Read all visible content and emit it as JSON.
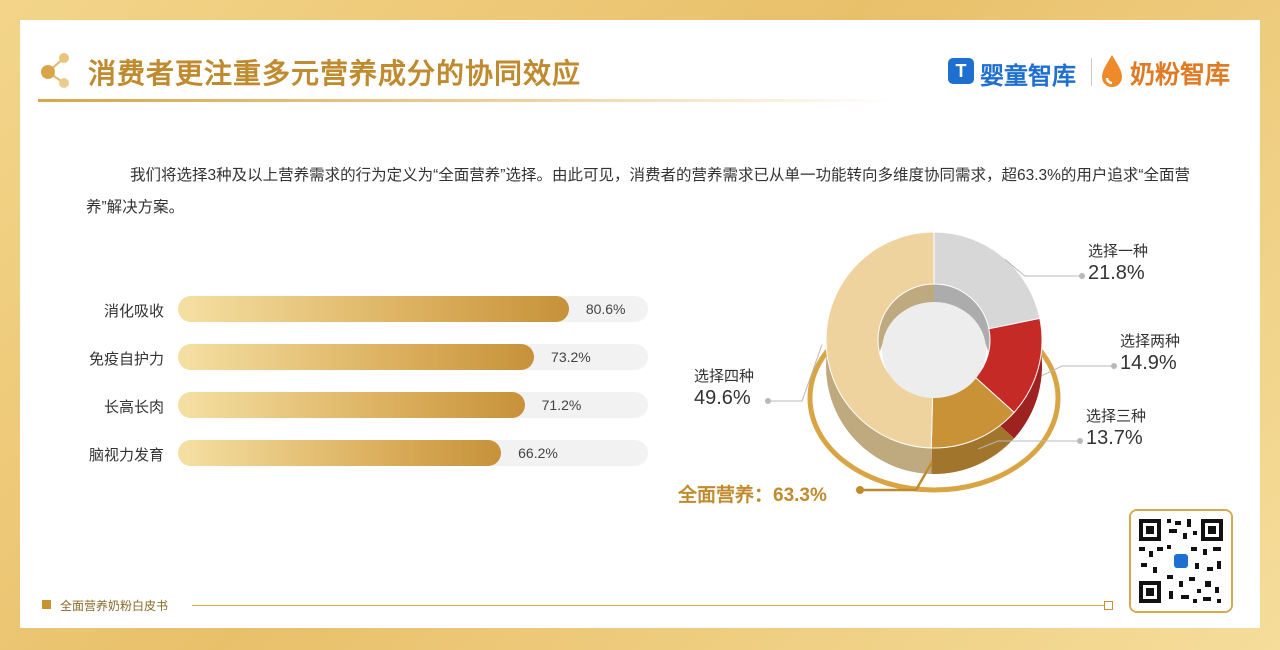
{
  "header": {
    "title": "消费者更注重多元营养成分的协同效应",
    "logo_a_mark": "T",
    "logo_a_text": "婴童智库",
    "logo_b_text": "奶粉智库"
  },
  "description": "我们将选择3种及以上营养需求的行为定义为“全面营养”选择。由此可见，消费者的营养需求已从单一功能转向多维度协同需求，超63.3%的用户追求“全面营养”解决方案。",
  "chart_data": [
    {
      "type": "bar",
      "orientation": "horizontal",
      "categories": [
        "消化吸收",
        "免疫自护力",
        "长高长肉",
        "脑视力发育"
      ],
      "values": [
        80.6,
        73.2,
        71.2,
        66.2
      ],
      "value_labels": [
        "80.6%",
        "73.2%",
        "71.2%",
        "66.2%"
      ],
      "xlim": [
        0,
        100
      ],
      "color": "#d4a24c"
    },
    {
      "type": "pie",
      "variant": "3d-donut",
      "slices": [
        {
          "label": "选择一种",
          "value": 21.8,
          "value_label": "21.8%",
          "color": "#d7d7d7"
        },
        {
          "label": "选择两种",
          "value": 14.9,
          "value_label": "14.9%",
          "color": "#c62a27"
        },
        {
          "label": "选择三种",
          "value": 13.7,
          "value_label": "13.7%",
          "color": "#c99236"
        },
        {
          "label": "选择四种",
          "value": 49.6,
          "value_label": "49.6%",
          "color": "#efd39e"
        }
      ],
      "annotation": "全面营养：63.3%"
    }
  ],
  "footer": {
    "text": "全面营养奶粉白皮书"
  },
  "colors": {
    "accent": "#c08a2e",
    "frame": "#ecc874",
    "logo_blue": "#1e6fd0",
    "logo_orange": "#e07a24"
  }
}
